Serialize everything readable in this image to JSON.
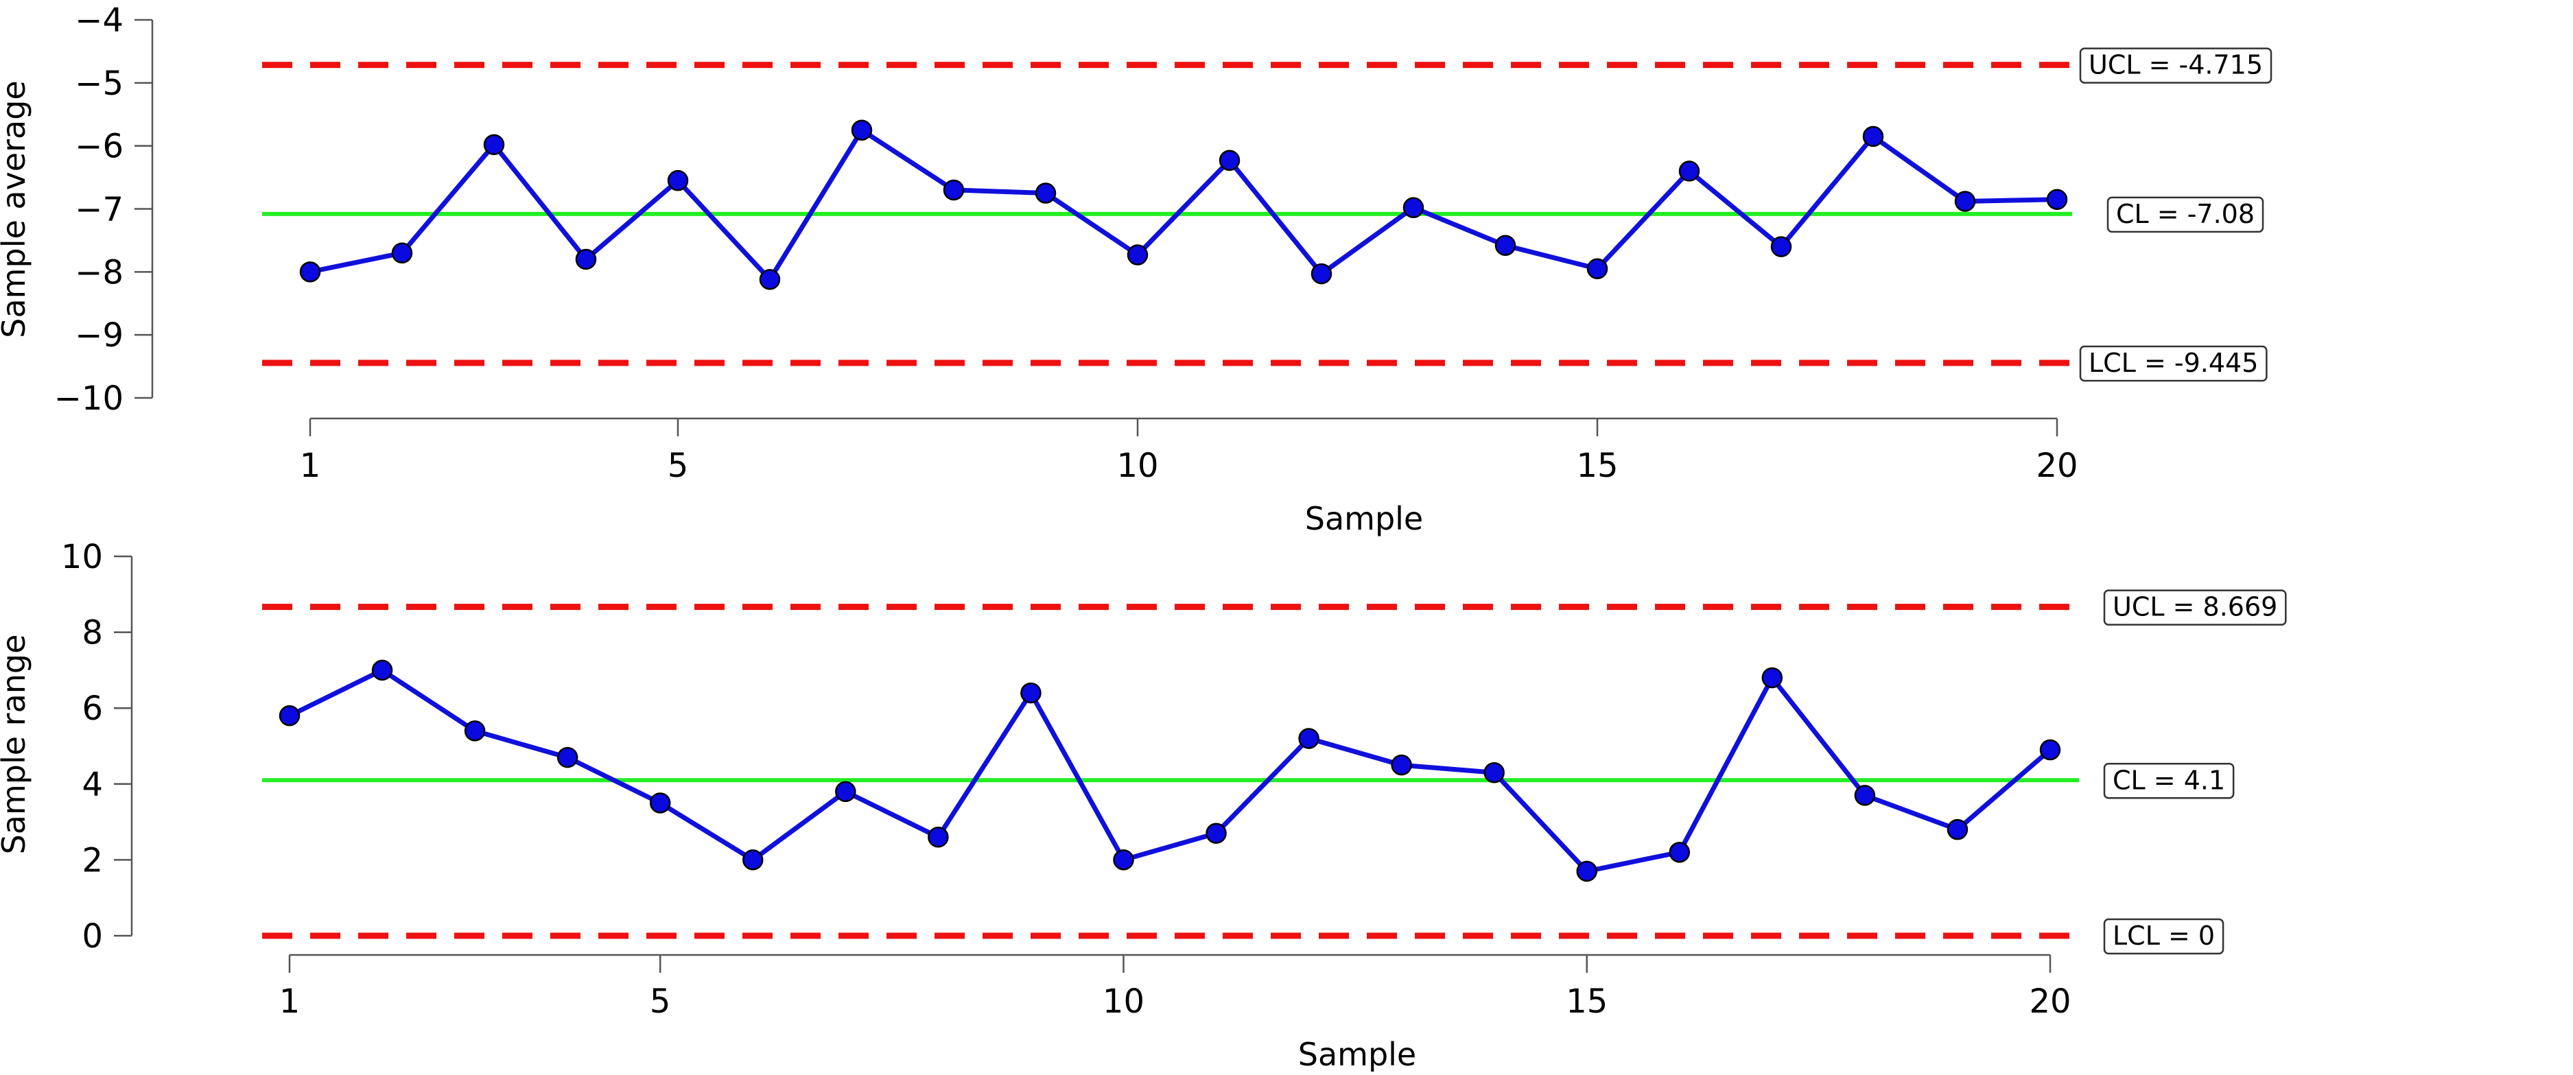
{
  "chart_data": [
    {
      "type": "line",
      "chart_kind": "control-chart-xbar",
      "xlabel": "Sample",
      "ylabel": "Sample average",
      "x": [
        1,
        2,
        3,
        4,
        5,
        6,
        7,
        8,
        9,
        10,
        11,
        12,
        13,
        14,
        15,
        16,
        17,
        18,
        19,
        20
      ],
      "xticks": [
        1,
        5,
        10,
        15,
        20
      ],
      "ylim": [
        -10,
        -4
      ],
      "yticks": [
        -4,
        -5,
        -6,
        -7,
        -8,
        -9,
        -10
      ],
      "ytick_labels": [
        "−4",
        "−5",
        "−6",
        "−7",
        "−8",
        "−9",
        "−10"
      ],
      "series": [
        {
          "values": [
            -8.0,
            -7.7,
            -5.98,
            -7.8,
            -6.55,
            -8.12,
            -5.75,
            -6.7,
            -6.75,
            -7.73,
            -6.23,
            -8.03,
            -6.98,
            -7.58,
            -7.95,
            -6.4,
            -7.6,
            -5.85,
            -6.88,
            -6.85
          ]
        }
      ],
      "limits": {
        "ucl": -4.715,
        "cl": -7.08,
        "lcl": -9.445
      },
      "limit_labels": {
        "ucl": "UCL = -4.715",
        "cl": "CL = -7.08",
        "lcl": "LCL = -9.445"
      },
      "grid": false,
      "colors": {
        "line": "#1010dd",
        "marker": "#0a0ae0",
        "center": "#22ee22",
        "limits": "#ee1111"
      }
    },
    {
      "type": "line",
      "chart_kind": "control-chart-range",
      "xlabel": "Sample",
      "ylabel": "Sample range",
      "x": [
        1,
        2,
        3,
        4,
        5,
        6,
        7,
        8,
        9,
        10,
        11,
        12,
        13,
        14,
        15,
        16,
        17,
        18,
        19,
        20
      ],
      "xticks": [
        1,
        5,
        10,
        15,
        20
      ],
      "ylim": [
        0,
        10
      ],
      "yticks": [
        0,
        2,
        4,
        6,
        8,
        10
      ],
      "ytick_labels": [
        "0",
        "2",
        "4",
        "6",
        "8",
        "10"
      ],
      "series": [
        {
          "values": [
            5.8,
            7.0,
            5.4,
            4.7,
            3.5,
            2.0,
            3.8,
            2.6,
            6.4,
            2.0,
            2.7,
            5.2,
            4.5,
            4.3,
            1.7,
            2.2,
            6.8,
            3.7,
            2.8,
            4.9
          ]
        }
      ],
      "limits": {
        "ucl": 8.669,
        "cl": 4.1,
        "lcl": 0
      },
      "limit_labels": {
        "ucl": "UCL = 8.669",
        "cl": "CL = 4.1",
        "lcl": "LCL = 0"
      },
      "grid": false,
      "colors": {
        "line": "#1010dd",
        "marker": "#0a0ae0",
        "center": "#22ee22",
        "limits": "#ee1111"
      }
    }
  ]
}
